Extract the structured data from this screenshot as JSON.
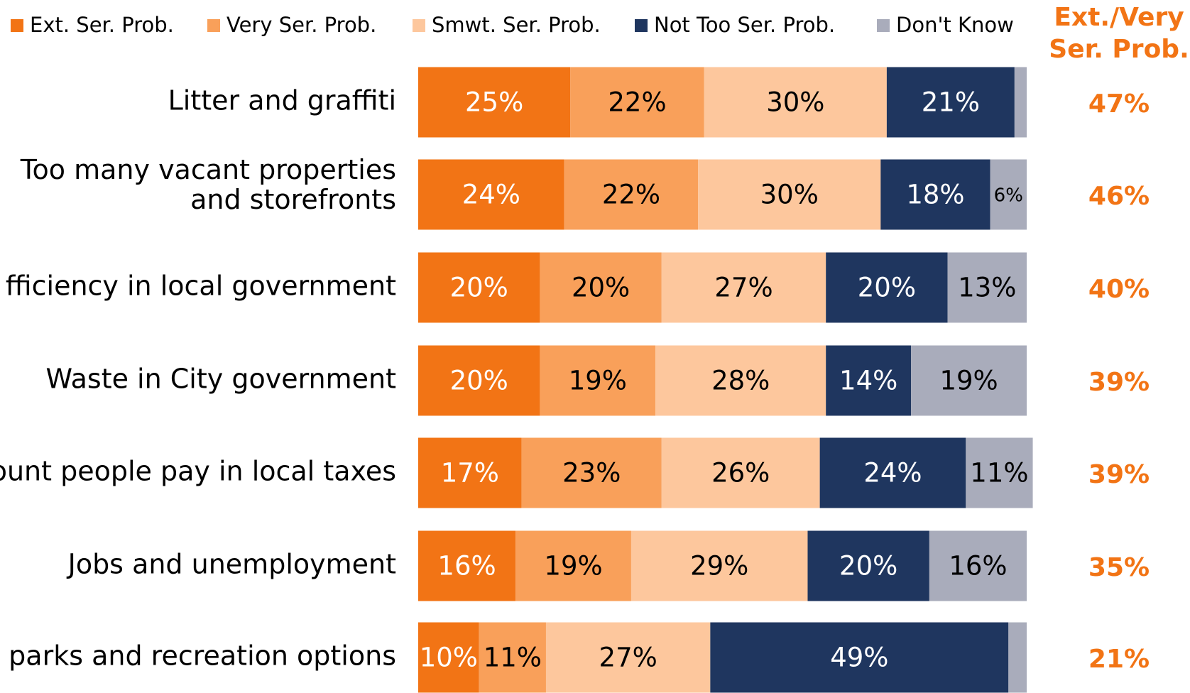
{
  "chart_data": {
    "type": "stacked-bar-horizontal",
    "categories": [
      "Litter and graffiti",
      "Too many vacant properties\nand storefronts",
      "fficiency in local government",
      "Waste in City government",
      "ount people pay in local taxes",
      "Jobs and unemployment",
      "parks and recreation options"
    ],
    "xlim": [
      0,
      100
    ],
    "legend": "top",
    "series": [
      {
        "name": "Ext. Ser. Prob.",
        "color": "#f27415",
        "values": [
          25,
          24,
          20,
          20,
          17,
          16,
          10
        ],
        "value_labels": [
          "25%",
          "24%",
          "20%",
          "20%",
          "17%",
          "16%",
          "10%"
        ]
      },
      {
        "name": "Very Ser. Prob.",
        "color": "#f9a05a",
        "values": [
          22,
          22,
          20,
          19,
          23,
          19,
          11
        ],
        "value_labels": [
          "22%",
          "22%",
          "20%",
          "19%",
          "23%",
          "19%",
          "11%"
        ]
      },
      {
        "name": "Smwt. Ser. Prob.",
        "color": "#fdc79d",
        "values": [
          30,
          30,
          27,
          28,
          26,
          29,
          27
        ],
        "value_labels": [
          "30%",
          "30%",
          "27%",
          "28%",
          "26%",
          "29%",
          "27%"
        ]
      },
      {
        "name": "Not Too Ser. Prob.",
        "color": "#1f365f",
        "values": [
          21,
          18,
          20,
          14,
          24,
          20,
          49
        ],
        "value_labels": [
          "21%",
          "18%",
          "20%",
          "14%",
          "24%",
          "20%",
          "49%"
        ]
      },
      {
        "name": "Don't Know",
        "color": "#a9acbb",
        "values": [
          2,
          6,
          13,
          19,
          11,
          16,
          3
        ],
        "value_labels": [
          null,
          "6%",
          "13%",
          "19%",
          "11%",
          "16%",
          null
        ]
      }
    ],
    "totals": {
      "title": [
        "Ext./Very",
        "Ser. Prob."
      ],
      "color": "#f27415",
      "values": [
        47,
        46,
        40,
        39,
        39,
        35,
        21
      ],
      "value_labels": [
        "47%",
        "46%",
        "40%",
        "39%",
        "39%",
        "35%",
        "21%"
      ]
    }
  }
}
